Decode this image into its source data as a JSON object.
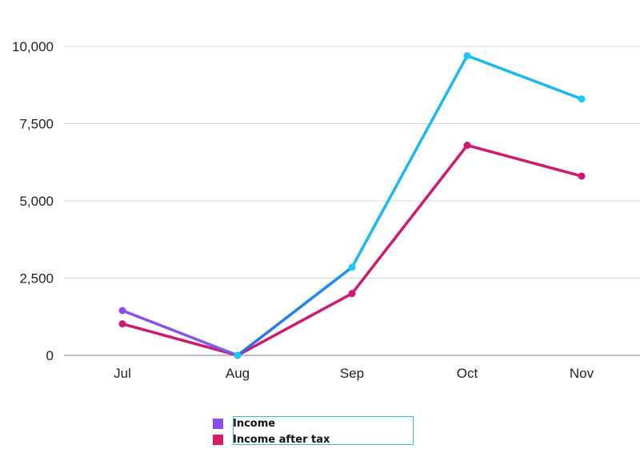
{
  "chart_data": {
    "type": "line",
    "categories": [
      "Jul",
      "Aug",
      "Sep",
      "Oct",
      "Nov"
    ],
    "series": [
      {
        "name": "Income",
        "values": [
          1450,
          0,
          2850,
          9700,
          8300
        ],
        "line_color": "#1ab8f0",
        "marker_color": "#1ec8f5",
        "legend_color": "#8b4cf0",
        "start_segment_color": "#8b4cf0"
      },
      {
        "name": "Income after tax",
        "values": [
          1020,
          0,
          2000,
          6800,
          5800
        ],
        "line_color": "#d01870",
        "marker_color": "#d01870",
        "legend_color": "#d81868"
      }
    ],
    "y_ticks": [
      {
        "value": 0,
        "label": "0"
      },
      {
        "value": 2500,
        "label": "2,500"
      },
      {
        "value": 5000,
        "label": "5,000"
      },
      {
        "value": 7500,
        "label": "7,500"
      },
      {
        "value": 10000,
        "label": "10,000"
      }
    ],
    "ylim": [
      0,
      10000
    ],
    "grid": true,
    "legend_position": "bottom",
    "title": "",
    "xlabel": "",
    "ylabel": ""
  }
}
